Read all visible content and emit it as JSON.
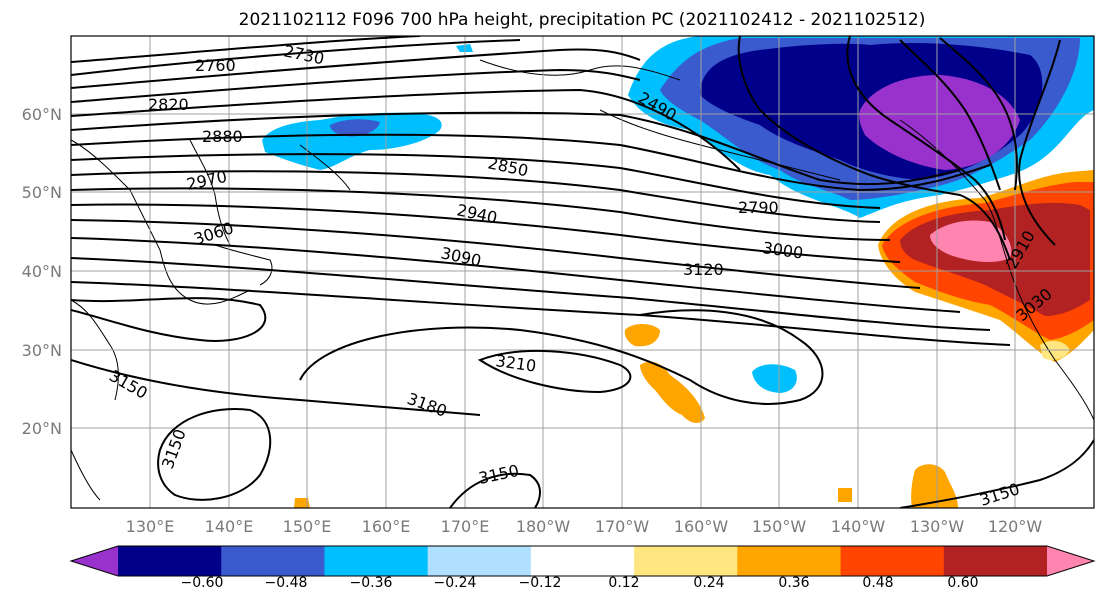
{
  "title": "2021102112 F096 700 hPa height, precipitation PC (2021102412 - 2021102512)",
  "map": {
    "lat_labels": [
      "60°N",
      "50°N",
      "40°N",
      "30°N",
      "20°N"
    ],
    "lon_labels": [
      "130°E",
      "140°E",
      "150°E",
      "160°E",
      "170°E",
      "180°W",
      "170°W",
      "160°W",
      "150°W",
      "140°W",
      "130°W",
      "120°W"
    ],
    "contour_labels": [
      "2730",
      "2760",
      "2820",
      "2880",
      "2970",
      "3060",
      "2850",
      "2940",
      "3090",
      "2490",
      "2790",
      "3000",
      "3120",
      "2910",
      "3030",
      "3210",
      "3150",
      "3180",
      "3150",
      "3150",
      "3150"
    ],
    "grid": true
  },
  "colorbar": {
    "tick_labels": [
      "−0.60",
      "−0.48",
      "−0.36",
      "−0.24",
      "−0.12",
      "0.12",
      "0.24",
      "0.36",
      "0.48",
      "0.60"
    ],
    "colors": [
      "#9932CC",
      "#00008B",
      "#3A5BCD",
      "#00BFFF",
      "#B0E0FF",
      "#FFFFFF",
      "#FFE680",
      "#FFA500",
      "#FF4500",
      "#B22222",
      "#FF85B0"
    ]
  }
}
